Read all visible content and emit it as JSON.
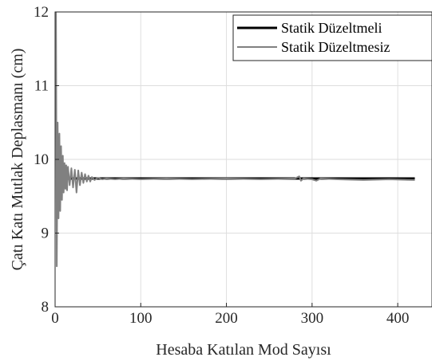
{
  "chart_data": {
    "type": "line",
    "title": "",
    "xlabel": "Hesaba Katılan Mod Sayısı",
    "ylabel": "Çatı Katı Mutlak Deplasmanı (cm)",
    "xlim": [
      0,
      440
    ],
    "ylim": [
      8,
      12
    ],
    "xticks": [
      0,
      100,
      200,
      300,
      400
    ],
    "yticks": [
      8,
      9,
      10,
      11,
      12
    ],
    "grid": true,
    "legend_position": "top-right",
    "series": [
      {
        "name": "Statik Düzeltmeli",
        "color": "#000000",
        "x": [
          1,
          420
        ],
        "y": [
          9.74,
          9.74
        ]
      },
      {
        "name": "Statik Düzeltmesiz",
        "color": "#808080",
        "x": [
          1,
          2,
          3,
          4,
          5,
          6,
          7,
          8,
          9,
          10,
          11,
          12,
          13,
          14,
          15,
          17,
          19,
          21,
          23,
          25,
          27,
          29,
          31,
          33,
          35,
          37,
          39,
          41,
          43,
          46,
          50,
          55,
          60,
          70,
          80,
          100,
          130,
          160,
          200,
          240,
          280,
          285,
          287,
          290,
          300,
          305,
          310,
          330,
          360,
          390,
          420
        ],
        "y": [
          12.0,
          8.55,
          10.5,
          9.2,
          10.35,
          9.3,
          10.18,
          9.45,
          10.05,
          9.55,
          9.95,
          9.6,
          9.92,
          9.58,
          9.9,
          9.65,
          9.88,
          9.62,
          9.86,
          9.55,
          9.85,
          9.65,
          9.82,
          9.68,
          9.8,
          9.7,
          9.78,
          9.7,
          9.76,
          9.72,
          9.75,
          9.73,
          9.74,
          9.73,
          9.74,
          9.73,
          9.74,
          9.73,
          9.74,
          9.73,
          9.74,
          9.77,
          9.71,
          9.74,
          9.73,
          9.71,
          9.74,
          9.73,
          9.72,
          9.73,
          9.72
        ]
      }
    ]
  }
}
